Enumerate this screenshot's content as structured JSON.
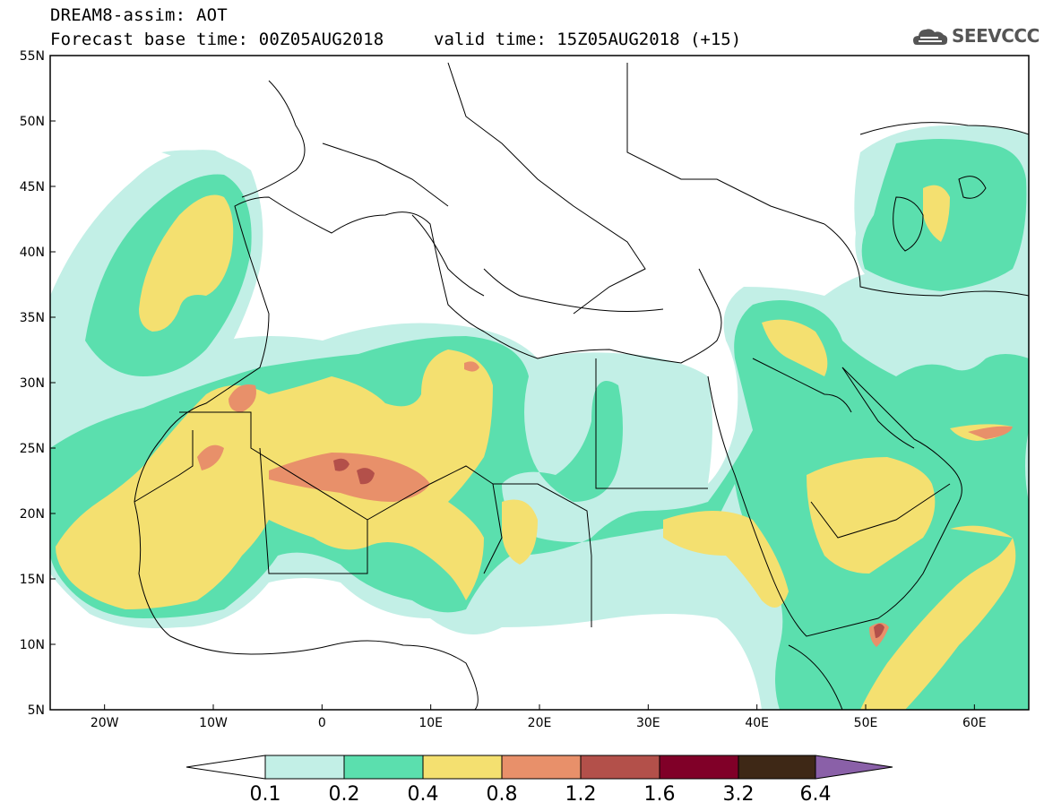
{
  "header": {
    "model_title": "DREAM8-assim: AOT",
    "base_time": "Forecast base time: 00Z05AUG2018",
    "valid_time": "valid time: 15Z05AUG2018 (+15)",
    "logo_text": "SEEVCCC"
  },
  "map": {
    "lon_range": [
      -25,
      65
    ],
    "lat_range": [
      5,
      55
    ],
    "lat_labels": [
      "55N",
      "50N",
      "45N",
      "40N",
      "35N",
      "30N",
      "25N",
      "20N",
      "15N",
      "10N",
      "5N"
    ],
    "lon_labels": [
      "20W",
      "10W",
      "0",
      "10E",
      "20E",
      "30E",
      "40E",
      "50E",
      "60E"
    ]
  },
  "colorbar": {
    "labels": [
      "0.1",
      "0.2",
      "0.4",
      "0.8",
      "1.2",
      "1.6",
      "3.2",
      "6.4"
    ],
    "colors": [
      "#ffffff",
      "#c2efe6",
      "#5bdfae",
      "#f4e070",
      "#e8906a",
      "#b3504a",
      "#800028",
      "#3e2816",
      "#8a60a8"
    ]
  },
  "colors": {
    "c1": "#c2efe6",
    "c2": "#5bdfae",
    "c3": "#f4e070",
    "c4": "#e8906a",
    "c5": "#b3504a",
    "logo": "#555555"
  }
}
